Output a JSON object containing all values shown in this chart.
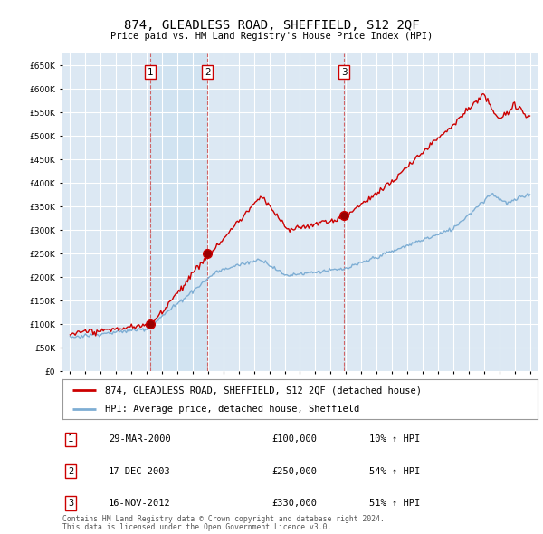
{
  "title": "874, GLEADLESS ROAD, SHEFFIELD, S12 2QF",
  "subtitle": "Price paid vs. HM Land Registry's House Price Index (HPI)",
  "legend_line1": "874, GLEADLESS ROAD, SHEFFIELD, S12 2QF (detached house)",
  "legend_line2": "HPI: Average price, detached house, Sheffield",
  "footer1": "Contains HM Land Registry data © Crown copyright and database right 2024.",
  "footer2": "This data is licensed under the Open Government Licence v3.0.",
  "sales": [
    {
      "num": 1,
      "year": 2000.24,
      "price": 100000,
      "label": "29-MAR-2000",
      "price_label": "£100,000",
      "hpi_label": "10% ↑ HPI"
    },
    {
      "num": 2,
      "year": 2003.96,
      "price": 250000,
      "label": "17-DEC-2003",
      "price_label": "£250,000",
      "hpi_label": "54% ↑ HPI"
    },
    {
      "num": 3,
      "year": 2012.87,
      "price": 330000,
      "label": "16-NOV-2012",
      "price_label": "£330,000",
      "hpi_label": "51% ↑ HPI"
    }
  ],
  "red_color": "#cc0000",
  "blue_color": "#7eaed4",
  "shade_color": "#dce8f3",
  "bg_color": "#dce8f3",
  "grid_color": "#ffffff",
  "ylim": [
    0,
    675000
  ],
  "xlim": [
    1994.5,
    2025.5
  ],
  "yticks": [
    0,
    50000,
    100000,
    150000,
    200000,
    250000,
    300000,
    350000,
    400000,
    450000,
    500000,
    550000,
    600000,
    650000
  ],
  "xticks": [
    1995,
    1996,
    1997,
    1998,
    1999,
    2000,
    2001,
    2002,
    2003,
    2004,
    2005,
    2006,
    2007,
    2008,
    2009,
    2010,
    2011,
    2012,
    2013,
    2014,
    2015,
    2016,
    2017,
    2018,
    2019,
    2020,
    2021,
    2022,
    2023,
    2024,
    2025
  ]
}
